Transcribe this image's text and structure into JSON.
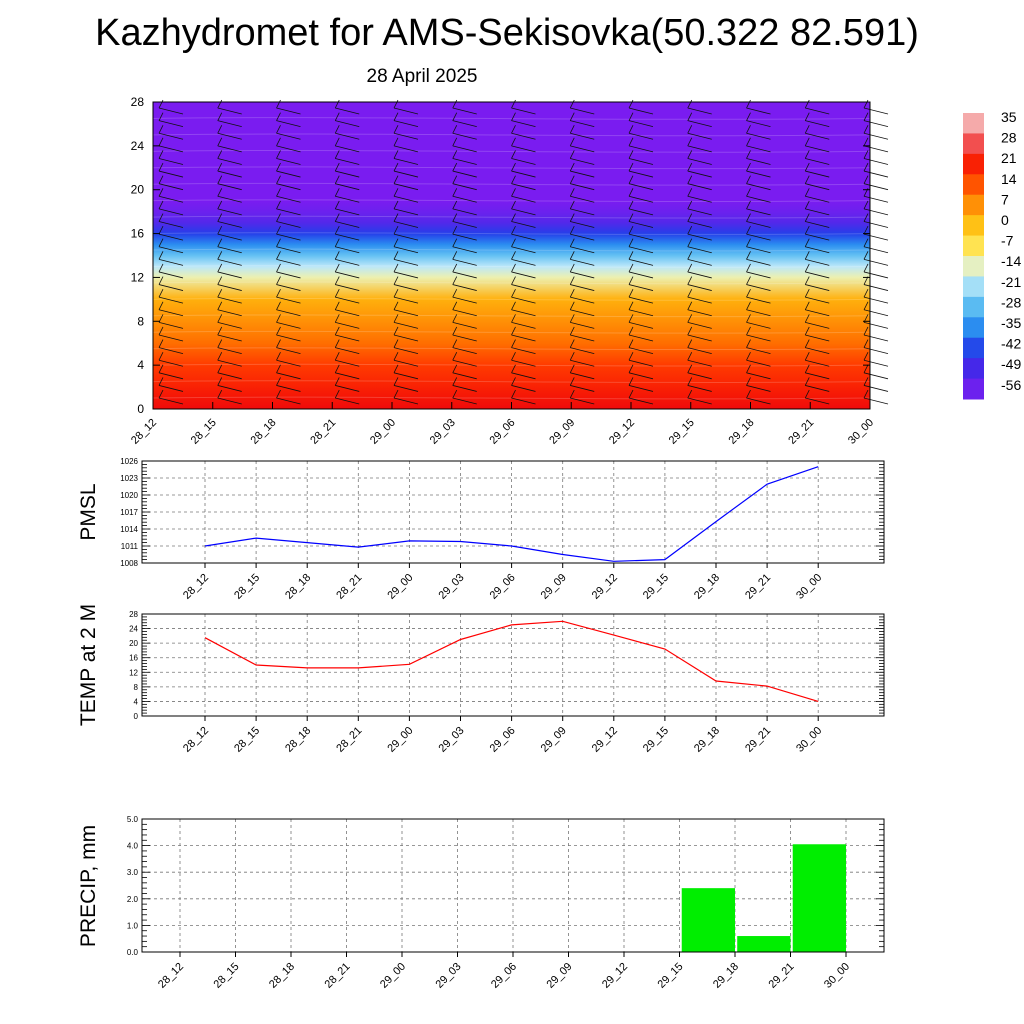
{
  "title": "Kazhydromet for AMS-Sekisovka(50.322 82.591)",
  "subtitle": "28 April 2025",
  "chart_data": [
    {
      "type": "heatmap",
      "description_axis": "y is height level",
      "x_categories": [
        "28_12",
        "28_15",
        "28_18",
        "28_21",
        "29_00",
        "29_03",
        "29_06",
        "29_09",
        "29_12",
        "29_15",
        "29_18",
        "29_21",
        "30_00"
      ],
      "y_ticks": [
        0,
        4,
        8,
        12,
        16,
        20,
        24,
        28
      ],
      "ylim": [
        0,
        28
      ],
      "colorbar_labels": [
        "35",
        "28",
        "21",
        "14",
        "7",
        "0",
        "-7",
        "-14",
        "-21",
        "-28",
        "-35",
        "-42",
        "-49",
        "-56"
      ],
      "colorbar_range": [
        -56,
        35
      ],
      "colors": {
        "cold": "#7a1cf0",
        "hot": "#ff1a00"
      },
      "temperature_profile_by_level": [
        {
          "level": 0,
          "value": 28
        },
        {
          "level": 2,
          "value": 24
        },
        {
          "level": 4,
          "value": 20
        },
        {
          "level": 6,
          "value": 14
        },
        {
          "level": 8,
          "value": 10
        },
        {
          "level": 10,
          "value": 6
        },
        {
          "level": 12,
          "value": -10
        },
        {
          "level": 13,
          "value": -16
        },
        {
          "level": 14,
          "value": -24
        },
        {
          "level": 15,
          "value": -32
        },
        {
          "level": 16,
          "value": -40
        },
        {
          "level": 17,
          "value": -48
        },
        {
          "level": 18,
          "value": -53
        },
        {
          "level": 19,
          "value": -56
        },
        {
          "level": 20,
          "value": -56
        },
        {
          "level": 28,
          "value": -56
        }
      ]
    },
    {
      "type": "line",
      "ylabel": "PMSL",
      "categories": [
        "28_12",
        "28_15",
        "28_18",
        "28_21",
        "29_00",
        "29_03",
        "29_06",
        "29_09",
        "29_12",
        "29_15",
        "29_18",
        "29_21",
        "30_00"
      ],
      "values": [
        1011.0,
        1012.4,
        1011.6,
        1010.8,
        1011.9,
        1011.8,
        1011.0,
        1009.5,
        1008.3,
        1008.6,
        1015.3,
        1021.9,
        1025.0
      ],
      "yticks": [
        "1008",
        "1011",
        "1014",
        "1017",
        "1020",
        "1023",
        "1026"
      ],
      "ylim": [
        1008,
        1026
      ],
      "color": "#0000ff"
    },
    {
      "type": "line",
      "ylabel": "TEMP at 2 M",
      "categories": [
        "28_12",
        "28_15",
        "28_18",
        "28_21",
        "29_00",
        "29_03",
        "29_06",
        "29_09",
        "29_12",
        "29_15",
        "29_18",
        "29_21",
        "30_00"
      ],
      "values": [
        21.5,
        14.0,
        13.2,
        13.2,
        14.2,
        21.0,
        25.0,
        26.0,
        22.2,
        18.4,
        9.6,
        8.2,
        4.0
      ],
      "yticks": [
        "0",
        "4",
        "8",
        "12",
        "16",
        "20",
        "24",
        "28"
      ],
      "ylim": [
        0,
        28
      ],
      "color": "#ff0000"
    },
    {
      "type": "bar",
      "ylabel": "PRECIP, mm",
      "categories": [
        "28_12",
        "28_15",
        "28_18",
        "28_21",
        "29_00",
        "29_03",
        "29_06",
        "29_09",
        "29_12",
        "29_15",
        "29_18",
        "29_21",
        "30_00"
      ],
      "values": [
        0,
        0,
        0,
        0,
        0,
        0,
        0,
        0,
        0,
        2.4,
        0.6,
        4.05,
        0
      ],
      "yticks": [
        "0.0",
        "1.0",
        "2.0",
        "3.0",
        "4.0",
        "5.0"
      ],
      "ylim": [
        0,
        5
      ],
      "color": "#00ee00"
    }
  ]
}
